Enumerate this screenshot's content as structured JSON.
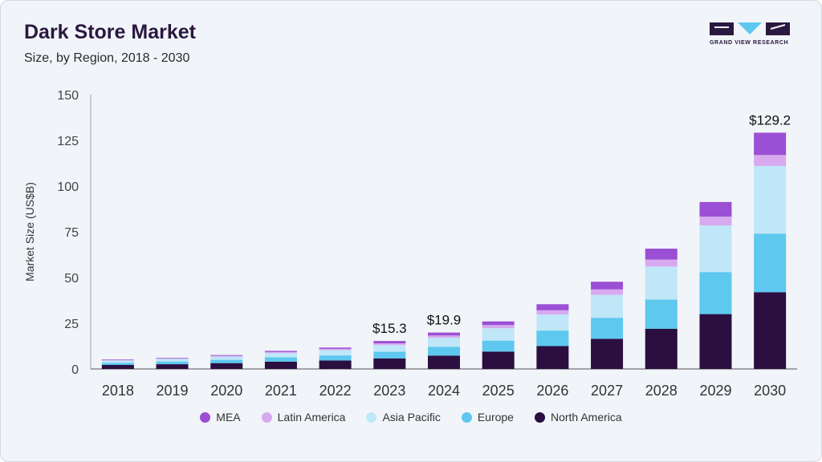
{
  "header": {
    "title": "Dark Store Market",
    "subtitle": "Size, by Region, 2018 - 2030",
    "logo_text": "GRAND VIEW RESEARCH"
  },
  "colors": {
    "MEA": "#9b4fd4",
    "Latin America": "#d7aaf0",
    "Asia Pacific": "#bfe7f7",
    "Europe": "#5ec8ef",
    "North America": "#2a0f40"
  },
  "chart_data": {
    "type": "bar",
    "stacked": true,
    "ylabel": "Market Size (US$B)",
    "ylim": [
      0,
      150
    ],
    "yticks": [
      0,
      25,
      50,
      75,
      100,
      125,
      150
    ],
    "categories": [
      "2018",
      "2019",
      "2020",
      "2021",
      "2022",
      "2023",
      "2024",
      "2025",
      "2026",
      "2027",
      "2028",
      "2029",
      "2030"
    ],
    "series": [
      {
        "name": "North America",
        "values": [
          2.2,
          2.6,
          3.2,
          4.0,
          4.6,
          5.8,
          7.3,
          9.5,
          12.5,
          16.5,
          22.0,
          30.0,
          42.0
        ]
      },
      {
        "name": "Europe",
        "values": [
          1.2,
          1.5,
          1.8,
          2.4,
          2.8,
          3.6,
          4.8,
          6.0,
          8.5,
          11.5,
          16.0,
          23.0,
          32.0
        ]
      },
      {
        "name": "Asia Pacific",
        "values": [
          1.2,
          1.4,
          1.8,
          2.3,
          2.9,
          3.7,
          5.0,
          6.8,
          8.8,
          12.5,
          18.0,
          25.5,
          37.0
        ]
      },
      {
        "name": "Latin America",
        "values": [
          0.3,
          0.3,
          0.4,
          0.6,
          0.7,
          0.9,
          1.2,
          1.7,
          2.3,
          3.0,
          3.8,
          4.8,
          6.0
        ]
      },
      {
        "name": "MEA",
        "values": [
          0.3,
          0.3,
          0.4,
          0.6,
          0.7,
          1.3,
          1.6,
          2.0,
          3.3,
          4.2,
          6.0,
          8.0,
          12.2
        ]
      }
    ],
    "annotations": [
      {
        "category": "2023",
        "label": "$15.3"
      },
      {
        "category": "2024",
        "label": "$19.9"
      },
      {
        "category": "2030",
        "label": "$129.2"
      }
    ],
    "legend": [
      "MEA",
      "Latin America",
      "Asia Pacific",
      "Europe",
      "North America"
    ],
    "legend_position": "bottom",
    "grid": false
  }
}
